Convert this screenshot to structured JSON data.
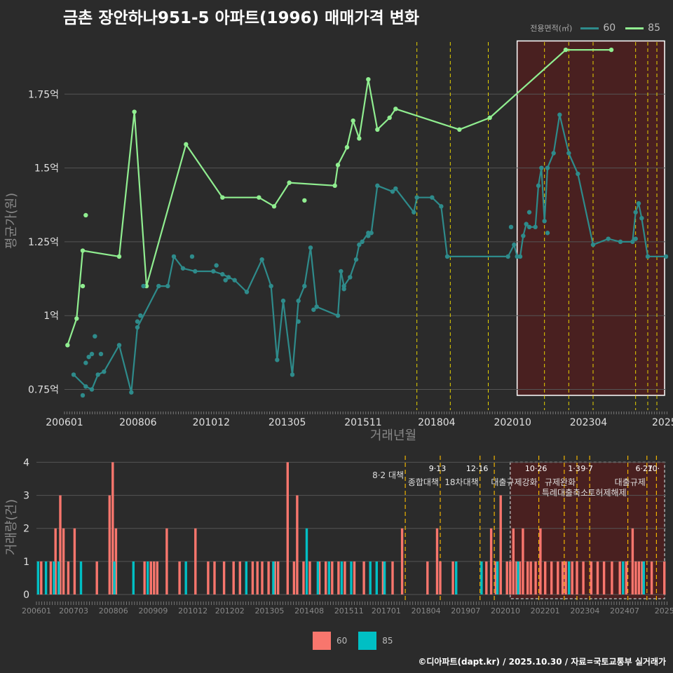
{
  "title": "금촌 장안하나951-5 아파트(1996) 매매가격 변화",
  "legend": {
    "title": "전용면적(㎡)",
    "items": [
      {
        "label": "60",
        "line_color": "#2e8b8b",
        "bar_color": "#f8766d"
      },
      {
        "label": "85",
        "line_color": "#90ee90",
        "bar_color": "#00bfc4"
      }
    ]
  },
  "credit": "©디아파트(dapt.kr) / 2025.10.30 / 자료=국토교통부 실거래가",
  "chart_data": [
    {
      "type": "line",
      "title": "금촌 장안하나951-5 아파트(1996) 매매가격 변화",
      "xlabel": "거래년월",
      "ylabel": "평균가(원)",
      "x_range": [
        2006.0,
        2025.8
      ],
      "ylim": [
        0.68,
        1.95
      ],
      "x_ticks": [
        {
          "x": 2006.0,
          "label": "200601"
        },
        {
          "x": 2008.42,
          "label": "200806"
        },
        {
          "x": 2010.83,
          "label": "201012"
        },
        {
          "x": 2013.33,
          "label": "201305"
        },
        {
          "x": 2015.83,
          "label": "201511"
        },
        {
          "x": 2018.25,
          "label": "201804"
        },
        {
          "x": 2020.75,
          "label": "202010"
        },
        {
          "x": 2023.25,
          "label": "202304"
        },
        {
          "x": 2025.75,
          "label": "2025"
        }
      ],
      "y_ticks": [
        {
          "y": 0.75,
          "label": "0.75억"
        },
        {
          "y": 1.0,
          "label": "1억"
        },
        {
          "y": 1.25,
          "label": "1.25억"
        },
        {
          "y": 1.5,
          "label": "1.5억"
        },
        {
          "y": 1.75,
          "label": "1.75억"
        }
      ],
      "vlines": [
        2017.6,
        2018.7,
        2019.95,
        2021.8,
        2022.6,
        2023.4,
        2024.8,
        2025.2,
        2025.5
      ],
      "highlight_range": [
        2020.9,
        2025.9
      ],
      "series": [
        {
          "name": "60",
          "x": [
            2006.3,
            2006.7,
            2006.9,
            2007.1,
            2007.3,
            2007.8,
            2008.2,
            2008.4,
            2009.1,
            2009.4,
            2009.6,
            2009.9,
            2010.3,
            2010.9,
            2011.2,
            2011.4,
            2011.6,
            2012.0,
            2012.5,
            2012.8,
            2013.0,
            2013.2,
            2013.5,
            2013.7,
            2013.9,
            2014.1,
            2014.3,
            2015.0,
            2015.1,
            2015.2,
            2015.4,
            2015.6,
            2015.7,
            2015.8,
            2016.0,
            2016.1,
            2016.3,
            2016.8,
            2016.9,
            2017.5,
            2017.6,
            2018.1,
            2018.4,
            2018.6,
            2020.6,
            2020.8,
            2020.9,
            2021.0,
            2021.1,
            2021.2,
            2021.3,
            2021.5,
            2021.6,
            2021.7,
            2021.8,
            2021.9,
            2022.1,
            2022.3,
            2022.6,
            2022.9,
            2023.4,
            2023.9,
            2024.3,
            2024.7,
            2024.8,
            2024.9,
            2025.0,
            2025.2,
            2025.8
          ],
          "y": [
            0.8,
            0.76,
            0.75,
            0.8,
            0.81,
            0.9,
            0.74,
            0.96,
            1.1,
            1.1,
            1.2,
            1.16,
            1.15,
            1.15,
            1.14,
            1.13,
            1.12,
            1.08,
            1.19,
            1.1,
            0.85,
            1.05,
            0.8,
            1.05,
            1.1,
            1.23,
            1.03,
            1.0,
            1.15,
            1.1,
            1.13,
            1.19,
            1.24,
            1.25,
            1.28,
            1.28,
            1.44,
            1.42,
            1.43,
            1.35,
            1.4,
            1.4,
            1.37,
            1.2,
            1.2,
            1.24,
            1.2,
            1.2,
            1.27,
            1.31,
            1.3,
            1.3,
            1.44,
            1.5,
            1.32,
            1.5,
            1.55,
            1.68,
            1.55,
            1.48,
            1.24,
            1.26,
            1.25,
            1.25,
            1.35,
            1.38,
            1.33,
            1.2,
            1.2
          ]
        },
        {
          "name": "85",
          "x": [
            2006.1,
            2006.4,
            2006.6,
            2007.8,
            2008.3,
            2008.7,
            2010.0,
            2011.2,
            2012.4,
            2012.9,
            2013.4,
            2014.9,
            2015.0,
            2015.3,
            2015.5,
            2015.7,
            2016.0,
            2016.3,
            2016.7,
            2016.9,
            2019.0,
            2020.0,
            2022.5,
            2024.0
          ],
          "y": [
            0.9,
            0.99,
            1.22,
            1.2,
            1.69,
            1.1,
            1.58,
            1.4,
            1.4,
            1.37,
            1.45,
            1.44,
            1.51,
            1.57,
            1.66,
            1.6,
            1.8,
            1.63,
            1.67,
            1.7,
            1.63,
            1.67,
            1.9,
            1.9
          ]
        }
      ],
      "extra_points": {
        "60": {
          "x": [
            2006.6,
            2006.7,
            2006.8,
            2006.9,
            2007.0,
            2007.2,
            2008.4,
            2008.5,
            2008.6,
            2010.2,
            2011.0,
            2011.3,
            2013.7,
            2014.2,
            2015.2,
            2016.0,
            2020.7,
            2021.3,
            2021.9,
            2024.8
          ],
          "y": [
            0.73,
            0.84,
            0.86,
            0.87,
            0.93,
            0.87,
            0.98,
            1.0,
            1.1,
            1.2,
            1.17,
            1.12,
            0.98,
            1.02,
            1.09,
            1.27,
            1.3,
            1.35,
            1.28,
            1.26
          ]
        },
        "85": {
          "x": [
            2006.6,
            2006.7,
            2013.9
          ],
          "y": [
            1.1,
            1.34,
            1.39
          ]
        }
      }
    },
    {
      "type": "bar",
      "xlabel": "",
      "ylabel": "거래량(건)",
      "x_range": [
        2006.0,
        2025.8
      ],
      "ylim": [
        0,
        4.2
      ],
      "y_ticks": [
        0,
        1,
        2,
        3,
        4
      ],
      "x_ticks": [
        {
          "x": 2006.0,
          "label": "200601"
        },
        {
          "x": 2007.17,
          "label": "200703"
        },
        {
          "x": 2008.42,
          "label": "200806"
        },
        {
          "x": 2009.67,
          "label": "200909"
        },
        {
          "x": 2010.92,
          "label": "201012"
        },
        {
          "x": 2012.08,
          "label": "201202"
        },
        {
          "x": 2013.33,
          "label": "201305"
        },
        {
          "x": 2014.58,
          "label": "201408"
        },
        {
          "x": 2015.83,
          "label": "201511"
        },
        {
          "x": 2017.0,
          "label": "201701"
        },
        {
          "x": 2018.25,
          "label": "201804"
        },
        {
          "x": 2019.5,
          "label": "201907"
        },
        {
          "x": 2020.75,
          "label": "202010"
        },
        {
          "x": 2022.0,
          "label": "202201"
        },
        {
          "x": 2023.25,
          "label": "202304"
        },
        {
          "x": 2024.5,
          "label": "202407"
        },
        {
          "x": 2025.75,
          "label": "2025"
        }
      ],
      "highlight_range": [
        2020.9,
        2025.9
      ],
      "events": [
        {
          "x": 2017.6,
          "date": "",
          "label": "8·2 대책"
        },
        {
          "x": 2018.7,
          "date": "9·13",
          "label": "종합대책"
        },
        {
          "x": 2019.95,
          "date": "12·16",
          "label": "18차대책"
        },
        {
          "x": 2020.4,
          "date": "",
          "label": ""
        },
        {
          "x": 2021.8,
          "date": "10·26",
          "label": "대출규제강화"
        },
        {
          "x": 2022.6,
          "date": "",
          "label": ""
        },
        {
          "x": 2023.0,
          "date": "1·3",
          "label": "규제완화"
        },
        {
          "x": 2023.4,
          "date": "9·7",
          "label": "특례대출축소"
        },
        {
          "x": 2024.6,
          "date": "",
          "label": "토허제해제"
        },
        {
          "x": 2025.2,
          "date": "6·27",
          "label": "대출규제"
        },
        {
          "x": 2025.5,
          "date": "10·",
          "label": ""
        }
      ],
      "series": [
        {
          "name": "60",
          "x": [
            2006.15,
            2006.45,
            2006.6,
            2006.75,
            2006.85,
            2007.0,
            2007.2,
            2007.9,
            2008.3,
            2008.4,
            2008.5,
            2009.4,
            2009.6,
            2009.7,
            2009.8,
            2010.1,
            2010.5,
            2011.0,
            2011.4,
            2011.6,
            2011.9,
            2012.2,
            2012.4,
            2012.8,
            2012.95,
            2013.1,
            2013.3,
            2013.5,
            2013.6,
            2013.9,
            2014.1,
            2014.2,
            2014.4,
            2014.6,
            2014.9,
            2015.1,
            2015.3,
            2015.5,
            2015.7,
            2016.0,
            2016.3,
            2016.9,
            2017.2,
            2017.5,
            2018.3,
            2018.6,
            2018.7,
            2019.1,
            2020.15,
            2020.3,
            2020.45,
            2020.6,
            2020.8,
            2020.9,
            2021.0,
            2021.1,
            2021.2,
            2021.3,
            2021.45,
            2021.55,
            2021.7,
            2021.85,
            2022.0,
            2022.2,
            2022.4,
            2022.55,
            2022.65,
            2022.85,
            2023.0,
            2023.2,
            2023.45,
            2023.65,
            2023.85,
            2024.1,
            2024.35,
            2024.55,
            2024.75,
            2024.85,
            2024.95,
            2025.05,
            2025.35,
            2025.75
          ],
          "y": [
            1,
            1,
            2,
            3,
            2,
            1,
            2,
            1,
            3,
            4,
            2,
            1,
            1,
            1,
            1,
            2,
            1,
            2,
            1,
            1,
            1,
            1,
            1,
            1,
            1,
            1,
            1,
            1,
            1,
            4,
            1,
            3,
            1,
            1,
            1,
            1,
            1,
            1,
            1,
            1,
            1,
            1,
            1,
            2,
            1,
            2,
            1,
            1,
            1,
            2,
            1,
            3,
            1,
            1,
            2,
            1,
            1,
            2,
            1,
            1,
            1,
            2,
            1,
            1,
            1,
            1,
            1,
            1,
            1,
            1,
            1,
            1,
            1,
            1,
            1,
            1,
            2,
            1,
            1,
            1,
            1,
            1
          ]
        },
        {
          "name": "85",
          "x": [
            2006.05,
            2006.3,
            2006.55,
            2006.7,
            2007.4,
            2008.45,
            2009.05,
            2009.5,
            2010.7,
            2012.6,
            2013.45,
            2014.5,
            2014.85,
            2015.2,
            2015.6,
            2015.9,
            2016.5,
            2016.7,
            2016.95,
            2019.2,
            2020.0,
            2020.5,
            2021.15,
            2022.75,
            2024.45,
            2025.1
          ],
          "y": [
            1,
            1,
            1,
            1,
            1,
            1,
            1,
            1,
            1,
            1,
            1,
            2,
            1,
            1,
            1,
            1,
            1,
            1,
            1,
            1,
            1,
            1,
            1,
            1,
            1,
            1
          ]
        }
      ]
    }
  ]
}
